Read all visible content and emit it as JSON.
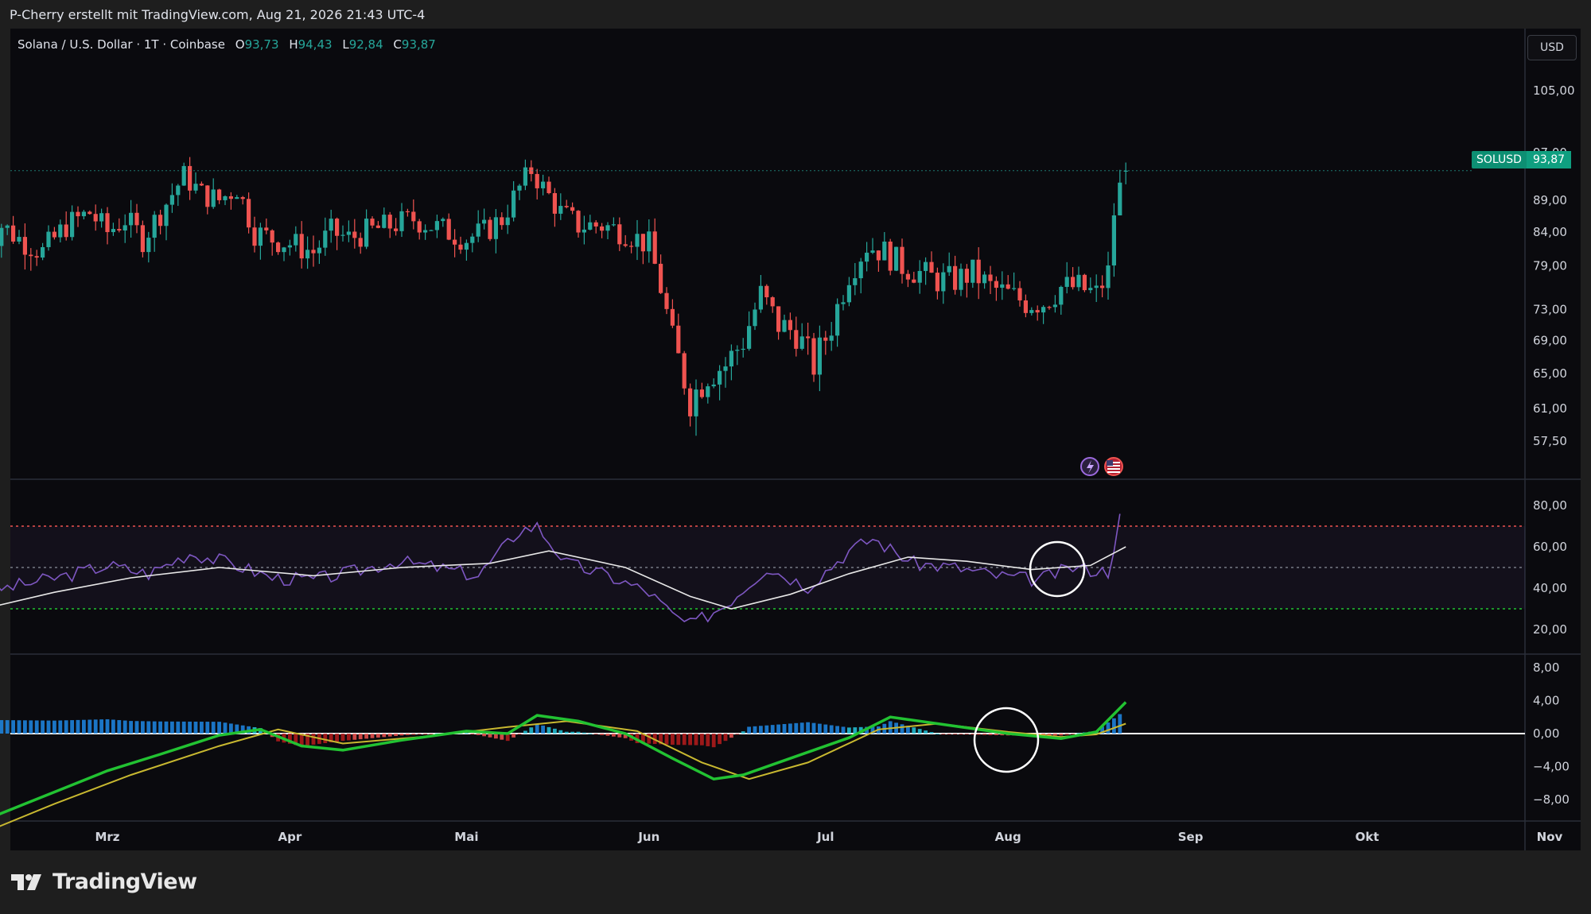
{
  "header": {
    "attribution": "P-Cherry erstellt mit TradingView.com, Aug 21, 2026 21:43 UTC-4"
  },
  "legend": {
    "symbol": "Solana / U.S. Dollar · 1T · Coinbase",
    "open_label": "O",
    "open": "93,73",
    "high_label": "H",
    "high": "94,43",
    "low_label": "L",
    "low": "92,84",
    "close_label": "C",
    "close": "93,87"
  },
  "currency_button": "USD",
  "last_price": {
    "symbol": "SOLUSD",
    "value": "93,87"
  },
  "footer": {
    "brand": "TradingView"
  },
  "colors": {
    "up": "#26a69a",
    "down": "#ef5350",
    "background": "#0a0a0e",
    "rsi": "#7e57c2",
    "macd_line": "#22c232",
    "signal_line": "#c8b830"
  },
  "icons": [
    "lightning-event-icon",
    "us-flag-event-icon"
  ],
  "chart_data": [
    {
      "type": "candlestick",
      "title": "Solana / U.S. Dollar · 1T · Coinbase",
      "y_ticks": [
        "105,00",
        "97,00",
        "89,00",
        "84,00",
        "79,00",
        "73,00",
        "69,00",
        "65,00",
        "61,00",
        "57,50"
      ],
      "x_ticks": [
        "Mrz",
        "Apr",
        "Mai",
        "Jun",
        "Jul",
        "Aug",
        "Sep",
        "Okt",
        "Nov"
      ],
      "close_path": [
        [
          "02-08",
          81
        ],
        [
          "02-11",
          85
        ],
        [
          "02-14",
          83
        ],
        [
          "02-18",
          81
        ],
        [
          "02-22",
          85
        ],
        [
          "02-26",
          87
        ],
        [
          "03-01",
          84
        ],
        [
          "03-04",
          86
        ],
        [
          "03-07",
          83
        ],
        [
          "03-10",
          87
        ],
        [
          "03-14",
          93
        ],
        [
          "03-17",
          90
        ],
        [
          "03-20",
          89
        ],
        [
          "03-23",
          91
        ],
        [
          "03-26",
          84
        ],
        [
          "03-29",
          83
        ],
        [
          "04-02",
          82
        ],
        [
          "04-05",
          81
        ],
        [
          "04-08",
          84
        ],
        [
          "04-11",
          83
        ],
        [
          "04-14",
          84
        ],
        [
          "04-18",
          85
        ],
        [
          "04-22",
          86
        ],
        [
          "04-25",
          85
        ],
        [
          "04-28",
          84
        ],
        [
          "05-01",
          83
        ],
        [
          "05-04",
          84
        ],
        [
          "05-07",
          86
        ],
        [
          "05-10",
          91
        ],
        [
          "05-12",
          94
        ],
        [
          "05-14",
          91
        ],
        [
          "05-17",
          87
        ],
        [
          "05-20",
          85
        ],
        [
          "05-24",
          85
        ],
        [
          "05-28",
          84
        ],
        [
          "06-01",
          82
        ],
        [
          "06-03",
          76
        ],
        [
          "06-05",
          69
        ],
        [
          "06-08",
          62
        ],
        [
          "06-11",
          65
        ],
        [
          "06-14",
          66
        ],
        [
          "06-17",
          69
        ],
        [
          "06-20",
          75
        ],
        [
          "06-23",
          71
        ],
        [
          "06-26",
          70
        ],
        [
          "06-29",
          66
        ],
        [
          "07-02",
          71
        ],
        [
          "07-05",
          78
        ],
        [
          "07-08",
          82
        ],
        [
          "07-11",
          81
        ],
        [
          "07-14",
          79
        ],
        [
          "07-17",
          78
        ],
        [
          "07-20",
          77
        ],
        [
          "07-23",
          77
        ],
        [
          "07-26",
          78
        ],
        [
          "07-29",
          76
        ],
        [
          "08-01",
          75
        ],
        [
          "08-04",
          74
        ],
        [
          "08-07",
          74
        ],
        [
          "08-10",
          76
        ],
        [
          "08-13",
          76
        ],
        [
          "08-16",
          75
        ],
        [
          "08-18",
          78
        ],
        [
          "08-19",
          87
        ],
        [
          "08-20",
          91
        ],
        [
          "08-21",
          93.87
        ]
      ],
      "last": {
        "open": 93.73,
        "high": 94.43,
        "low": 92.84,
        "close": 93.87
      }
    },
    {
      "type": "line",
      "name": "RSI",
      "y_ticks": [
        "80,00",
        "60,00",
        "40,00",
        "20,00"
      ],
      "bands": {
        "upper": 70,
        "middle": 50,
        "lower": 30
      },
      "rsi_path": [
        [
          "02-08",
          38
        ],
        [
          "02-15",
          42
        ],
        [
          "02-22",
          46
        ],
        [
          "03-01",
          51
        ],
        [
          "03-08",
          47
        ],
        [
          "03-15",
          57
        ],
        [
          "03-22",
          52
        ],
        [
          "03-29",
          45
        ],
        [
          "04-05",
          44
        ],
        [
          "04-12",
          48
        ],
        [
          "04-19",
          53
        ],
        [
          "04-26",
          50
        ],
        [
          "05-03",
          46
        ],
        [
          "05-10",
          68
        ],
        [
          "05-13",
          70
        ],
        [
          "05-18",
          52
        ],
        [
          "05-25",
          46
        ],
        [
          "06-01",
          38
        ],
        [
          "06-05",
          27
        ],
        [
          "06-08",
          22
        ],
        [
          "06-14",
          32
        ],
        [
          "06-21",
          50
        ],
        [
          "06-28",
          41
        ],
        [
          "07-05",
          58
        ],
        [
          "07-09",
          64
        ],
        [
          "07-16",
          52
        ],
        [
          "07-23",
          50
        ],
        [
          "07-30",
          46
        ],
        [
          "08-06",
          44
        ],
        [
          "08-12",
          50
        ],
        [
          "08-18",
          48
        ],
        [
          "08-20",
          74
        ],
        [
          "08-21",
          82
        ]
      ],
      "signal_path": [
        [
          "02-08",
          30
        ],
        [
          "02-20",
          38
        ],
        [
          "03-05",
          45
        ],
        [
          "03-20",
          50
        ],
        [
          "04-05",
          46
        ],
        [
          "04-20",
          50
        ],
        [
          "05-05",
          52
        ],
        [
          "05-15",
          58
        ],
        [
          "05-28",
          50
        ],
        [
          "06-08",
          36
        ],
        [
          "06-15",
          30
        ],
        [
          "06-25",
          37
        ],
        [
          "07-05",
          47
        ],
        [
          "07-15",
          55
        ],
        [
          "07-25",
          53
        ],
        [
          "08-05",
          49
        ],
        [
          "08-15",
          51
        ],
        [
          "08-21",
          60
        ]
      ]
    },
    {
      "type": "line",
      "name": "MACD",
      "y_ticks": [
        "8,00",
        "4,00",
        "0,00",
        "−4,00",
        "−8,00"
      ],
      "macd_path": [
        [
          "02-08",
          -10.5
        ],
        [
          "02-15",
          -8.5
        ],
        [
          "02-22",
          -6.5
        ],
        [
          "03-01",
          -4.5
        ],
        [
          "03-10",
          -2.5
        ],
        [
          "03-20",
          -0.2
        ],
        [
          "03-27",
          0.5
        ],
        [
          "04-03",
          -1.5
        ],
        [
          "04-10",
          -2
        ],
        [
          "04-20",
          -0.8
        ],
        [
          "05-01",
          0.3
        ],
        [
          "05-08",
          0
        ],
        [
          "05-13",
          2.2
        ],
        [
          "05-20",
          1.5
        ],
        [
          "05-28",
          0
        ],
        [
          "06-05",
          -3
        ],
        [
          "06-12",
          -5.5
        ],
        [
          "06-17",
          -5
        ],
        [
          "06-25",
          -3
        ],
        [
          "07-05",
          -0.5
        ],
        [
          "07-12",
          2
        ],
        [
          "07-20",
          1.2
        ],
        [
          "08-01",
          0
        ],
        [
          "08-10",
          -0.6
        ],
        [
          "08-16",
          0.2
        ],
        [
          "08-21",
          3.8
        ]
      ],
      "signal_path": [
        [
          "02-08",
          -12
        ],
        [
          "02-20",
          -8.5
        ],
        [
          "03-05",
          -5
        ],
        [
          "03-20",
          -1.5
        ],
        [
          "03-30",
          0.5
        ],
        [
          "04-10",
          -1.2
        ],
        [
          "04-25",
          -0.3
        ],
        [
          "05-08",
          0.8
        ],
        [
          "05-18",
          1.5
        ],
        [
          "05-30",
          0.3
        ],
        [
          "06-10",
          -3.5
        ],
        [
          "06-18",
          -5.5
        ],
        [
          "06-28",
          -3.5
        ],
        [
          "07-10",
          0.5
        ],
        [
          "07-20",
          1.2
        ],
        [
          "08-01",
          0.2
        ],
        [
          "08-10",
          -0.4
        ],
        [
          "08-16",
          -0.1
        ],
        [
          "08-21",
          1.2
        ]
      ]
    }
  ]
}
